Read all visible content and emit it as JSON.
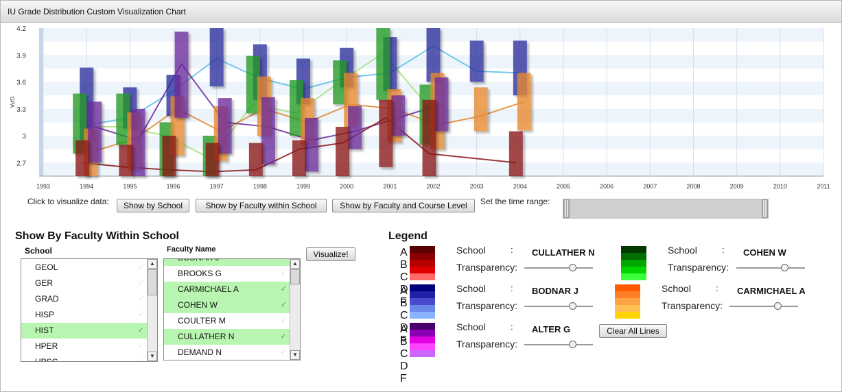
{
  "window": {
    "title": "IU Grade Distribution Custom Visualization Chart"
  },
  "chart_data": {
    "type": "candlestick-line",
    "title": "",
    "xlabel": "",
    "ylabel": "GPA",
    "ylim": [
      2.55,
      4.2
    ],
    "xlim": [
      1993,
      2011
    ],
    "yticks": [
      "2.7",
      "3",
      "3.3",
      "3.6",
      "3.9",
      "4.2"
    ],
    "ytick_values": [
      2.7,
      3.0,
      3.3,
      3.6,
      3.9,
      4.2
    ],
    "xticks": [
      "1993",
      "1994",
      "1995",
      "1996",
      "1997",
      "1998",
      "1999",
      "2000",
      "2001",
      "2002",
      "2003",
      "2004",
      "2005",
      "2006",
      "2007",
      "2008",
      "2009",
      "2010",
      "2011"
    ],
    "grid": true,
    "series": [
      {
        "palette": "blue",
        "color": "#2b2f9c",
        "line_color": "#5bbfe6",
        "offset": 0,
        "x": [
          1994,
          1995,
          1996,
          1997,
          1998,
          1999,
          2000,
          2001,
          2002,
          2003,
          2004
        ],
        "high": [
          3.76,
          3.54,
          3.68,
          4.2,
          4.02,
          3.86,
          3.98,
          4.1,
          4.2,
          4.06,
          4.06
        ],
        "low": [
          2.95,
          3.08,
          3.22,
          3.55,
          3.4,
          3.35,
          3.54,
          3.5,
          3.6,
          3.6,
          3.45
        ],
        "mean": [
          3.12,
          3.2,
          3.5,
          3.86,
          3.64,
          3.52,
          3.65,
          3.7,
          4.0,
          3.72,
          3.7
        ]
      },
      {
        "palette": "green",
        "color": "#239a23",
        "line_color": "#a3e07a",
        "offset": -10,
        "x": [
          1994,
          1995,
          1996,
          1997,
          1998,
          1999,
          2000,
          2001,
          2002
        ],
        "high": [
          3.47,
          3.47,
          3.15,
          3.0,
          3.89,
          3.62,
          3.84,
          4.2,
          3.57
        ],
        "low": [
          2.8,
          2.9,
          2.55,
          2.55,
          3.25,
          3.0,
          3.35,
          3.4,
          2.9
        ],
        "mean": [
          3.1,
          3.1,
          3.0,
          2.75,
          3.35,
          3.25,
          3.6,
          3.92,
          3.35
        ]
      },
      {
        "palette": "orange",
        "color": "#e8882e",
        "line_color": "#e0862c",
        "offset": 6,
        "x": [
          1994,
          1995,
          1996,
          1997,
          1998,
          1999,
          2000,
          2001,
          2002,
          2003,
          2004
        ],
        "high": [
          3.08,
          3.26,
          3.44,
          3.33,
          3.66,
          3.42,
          3.7,
          3.52,
          3.7,
          3.54,
          3.7
        ],
        "low": [
          2.55,
          2.62,
          2.78,
          2.72,
          3.0,
          2.9,
          3.1,
          2.93,
          2.85,
          3.05,
          3.06
        ],
        "mean": [
          2.82,
          2.96,
          3.3,
          3.05,
          3.3,
          3.15,
          3.35,
          3.3,
          3.12,
          3.22,
          3.38
        ]
      },
      {
        "palette": "purple",
        "color": "#6b2a9a",
        "line_color": "#6b2a9a",
        "offset": 12,
        "x": [
          1994,
          1995,
          1996,
          1997,
          1998,
          1999,
          2000,
          2001,
          2002
        ],
        "high": [
          3.38,
          3.3,
          4.16,
          3.42,
          3.43,
          3.2,
          3.33,
          3.45,
          3.65
        ],
        "low": [
          2.7,
          2.55,
          3.2,
          2.8,
          2.68,
          2.6,
          2.85,
          3.0,
          3.05
        ],
        "mean": [
          3.1,
          2.95,
          3.8,
          3.15,
          3.1,
          2.95,
          3.05,
          3.2,
          3.35
        ]
      },
      {
        "palette": "red",
        "color": "#8a1515",
        "line_color": "#8a1515",
        "offset": -6,
        "x": [
          1994,
          1995,
          1996,
          1997,
          1998,
          1999,
          2000,
          2001,
          2002,
          2004
        ],
        "high": [
          2.95,
          2.9,
          3.0,
          2.92,
          2.92,
          2.95,
          3.1,
          3.4,
          3.4,
          3.05
        ],
        "low": [
          2.55,
          2.55,
          2.55,
          2.55,
          2.55,
          2.55,
          2.55,
          2.65,
          2.55,
          2.55
        ],
        "mean": [
          2.7,
          2.65,
          2.62,
          2.6,
          2.62,
          2.85,
          2.92,
          3.2,
          2.8,
          2.7
        ]
      }
    ]
  },
  "controls": {
    "click_label": "Click to visualize data:",
    "btn_school": "Show by School",
    "btn_faculty": "Show by Faculty within School",
    "btn_course": "Show by Faculty and Course Level",
    "time_label": "Set the time range:"
  },
  "panel": {
    "title": "Show By Faculty Within School",
    "school_header": "School",
    "faculty_header": "Faculty Name",
    "visualize_btn": "Visualize!",
    "schools": [
      {
        "name": "GEOL",
        "selected": false
      },
      {
        "name": "GER",
        "selected": false
      },
      {
        "name": "GRAD",
        "selected": false
      },
      {
        "name": "HISP",
        "selected": false
      },
      {
        "name": "HIST",
        "selected": true
      },
      {
        "name": "HPER",
        "selected": false
      },
      {
        "name": "HPSC",
        "selected": false
      }
    ],
    "faculty": [
      {
        "name": "BODNAR J",
        "selected": true
      },
      {
        "name": "BROOKS G",
        "selected": false
      },
      {
        "name": "CARMICHAEL A",
        "selected": true
      },
      {
        "name": "COHEN W",
        "selected": true
      },
      {
        "name": "COULTER M",
        "selected": false
      },
      {
        "name": "CULLATHER N",
        "selected": true
      },
      {
        "name": "DEMAND N",
        "selected": false
      }
    ]
  },
  "legend": {
    "title": "Legend",
    "grade_letters": [
      "A",
      "B",
      "C",
      "D",
      "F"
    ],
    "school_label": "School",
    "colon": ":",
    "transparency_label": "Transparency:",
    "clear_btn": "Clear All Lines",
    "entries": [
      {
        "name": "CULLATHER N",
        "colors": [
          "#5a0000",
          "#8a0000",
          "#b50000",
          "#e00000",
          "#ff6a6a"
        ],
        "transparency": 0.7
      },
      {
        "name": "COHEN W",
        "colors": [
          "#003a00",
          "#006e00",
          "#00a500",
          "#00d400",
          "#3cff3c"
        ],
        "transparency": 0.7
      },
      {
        "name": "BODNAR J",
        "colors": [
          "#00007a",
          "#2020a8",
          "#4a4acd",
          "#6a88e8",
          "#8ab4ff"
        ],
        "transparency": 0.7
      },
      {
        "name": "CARMICHAEL A",
        "colors": [
          "#ff5a00",
          "#ff7f27",
          "#ffa347",
          "#ffbf52",
          "#ffd400"
        ],
        "transparency": 0.7
      },
      {
        "name": "ALTER G",
        "colors": [
          "#4a006a",
          "#8a00b4",
          "#e000e0",
          "#ff44ff",
          "#cc66ff"
        ],
        "transparency": 0.7
      }
    ]
  }
}
